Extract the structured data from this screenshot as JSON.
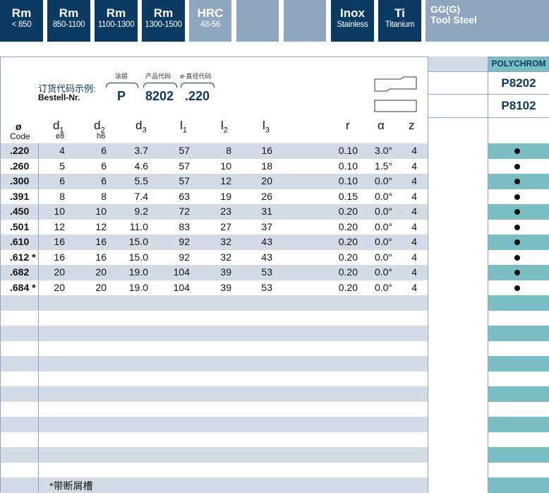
{
  "header": [
    {
      "title": "Rm",
      "sub": "< 850",
      "style": "dark"
    },
    {
      "title": "Rm",
      "sub": "850-1100",
      "style": "dark"
    },
    {
      "title": "Rm",
      "sub": "1100-1300",
      "style": "dark"
    },
    {
      "title": "Rm",
      "sub": "1300-1500",
      "style": "dark"
    },
    {
      "title": "HRC",
      "sub": "48-56",
      "style": "light"
    },
    {
      "title": "",
      "sub": "",
      "style": "light"
    },
    {
      "title": "",
      "sub": "",
      "style": "light"
    },
    {
      "title": "Inox",
      "sub": "Stainless",
      "style": "dark"
    },
    {
      "title": "Ti",
      "sub": "Titanium",
      "style": "dark"
    },
    {
      "title": "GG(G)",
      "sub": "Tool Steel",
      "style": "light"
    }
  ],
  "order_example": {
    "label_cn": "订货代码示例:",
    "label_en": "Bestell-Nr.",
    "coating_label": "涂层",
    "product_label": "产品代码",
    "diameter_label": "ø-直径代码",
    "coating_value": "P",
    "product_value": "8202",
    "diameter_value": ".220"
  },
  "brand": "POLYCHROM",
  "products": [
    "P8202",
    "P8102"
  ],
  "columns": {
    "code": "ø",
    "code_sub": "Code",
    "d1": "d1",
    "d1_sub": "e8",
    "d2": "d2",
    "d2_sub": "h6",
    "d3": "d3",
    "l1": "l1",
    "l2": "l2",
    "l3": "l3",
    "r": "r",
    "alpha": "α",
    "z": "z"
  },
  "rows": [
    {
      "code": ".220",
      "d1": "4",
      "d2": "6",
      "d3": "3.7",
      "l1": "57",
      "l2": "8",
      "l3": "16",
      "r": "0.10",
      "alpha": "3.0°",
      "z": "4",
      "avail": true
    },
    {
      "code": ".260",
      "d1": "5",
      "d2": "6",
      "d3": "4.6",
      "l1": "57",
      "l2": "10",
      "l3": "18",
      "r": "0.10",
      "alpha": "1.5°",
      "z": "4",
      "avail": true
    },
    {
      "code": ".300",
      "d1": "6",
      "d2": "6",
      "d3": "5.5",
      "l1": "57",
      "l2": "12",
      "l3": "20",
      "r": "0.10",
      "alpha": "0.0°",
      "z": "4",
      "avail": true
    },
    {
      "code": ".391",
      "d1": "8",
      "d2": "8",
      "d3": "7.4",
      "l1": "63",
      "l2": "19",
      "l3": "26",
      "r": "0.15",
      "alpha": "0.0°",
      "z": "4",
      "avail": true
    },
    {
      "code": ".450",
      "d1": "10",
      "d2": "10",
      "d3": "9.2",
      "l1": "72",
      "l2": "23",
      "l3": "31",
      "r": "0.20",
      "alpha": "0.0°",
      "z": "4",
      "avail": true
    },
    {
      "code": ".501",
      "d1": "12",
      "d2": "12",
      "d3": "11.0",
      "l1": "83",
      "l2": "27",
      "l3": "37",
      "r": "0.20",
      "alpha": "0.0°",
      "z": "4",
      "avail": true
    },
    {
      "code": ".610",
      "d1": "16",
      "d2": "16",
      "d3": "15.0",
      "l1": "92",
      "l2": "32",
      "l3": "43",
      "r": "0.20",
      "alpha": "0.0°",
      "z": "4",
      "avail": true
    },
    {
      "code": ".612 *",
      "d1": "16",
      "d2": "16",
      "d3": "15.0",
      "l1": "92",
      "l2": "32",
      "l3": "43",
      "r": "0.20",
      "alpha": "0.0°",
      "z": "4",
      "avail": true
    },
    {
      "code": ".682",
      "d1": "20",
      "d2": "20",
      "d3": "19.0",
      "l1": "104",
      "l2": "39",
      "l3": "53",
      "r": "0.20",
      "alpha": "0.0°",
      "z": "4",
      "avail": true
    },
    {
      "code": ".684 *",
      "d1": "20",
      "d2": "20",
      "d3": "19.0",
      "l1": "104",
      "l2": "39",
      "l3": "53",
      "r": "0.20",
      "alpha": "0.0°",
      "z": "4",
      "avail": true
    }
  ],
  "footnote": "*带断屑槽",
  "colors": {
    "dark": "#0b3a63",
    "light": "#8fa6bf",
    "teal": "#7bbfc4",
    "shade": "#d3dce6"
  }
}
